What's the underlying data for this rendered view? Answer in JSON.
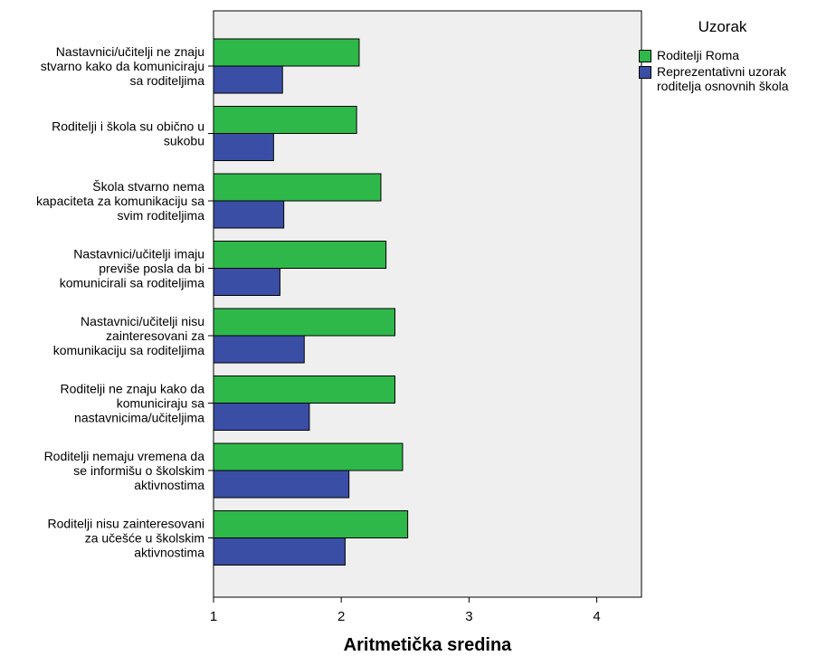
{
  "chart_data": {
    "type": "bar",
    "orientation": "horizontal",
    "title": "",
    "xlabel": "Aritmetička sredina",
    "ylabel": "",
    "xlim": [
      1,
      4.35
    ],
    "xticks": [
      "1",
      "2",
      "3",
      "4"
    ],
    "grid": false,
    "legend_title": "Uzorak",
    "legend_position": "top-right",
    "categories": [
      "Nastavnici/učitelji ne znaju stvarno kako da komuniciraju sa roditeljima",
      "Roditelji i škola su obično u sukobu",
      "Škola stvarno nema kapaciteta za komunikaciju sa svim roditeljima",
      "Nastavnici/učitelji imaju previše posla da bi komunicirali sa roditeljima",
      "Nastavnici/učitelji nisu zainteresovani za komunikaciju sa roditeljima",
      "Roditelji ne znaju kako da komuniciraju sa nastavnicima/učiteljima",
      "Roditelji nemaju vremena da se informišu o školskim aktivnostima",
      "Roditelji nisu zainteresovani za učešće u školskim aktivnostima"
    ],
    "category_lines": [
      [
        "Nastavnici/učitelji ne znaju",
        "stvarno kako da komuniciraju",
        "sa roditeljima"
      ],
      [
        "Roditelji i škola su obično u",
        "sukobu"
      ],
      [
        "Škola stvarno nema",
        "kapaciteta za komunikaciju sa",
        "svim roditeljima"
      ],
      [
        "Nastavnici/učitelji imaju",
        "previše posla da bi",
        "komunicirali sa roditeljima"
      ],
      [
        "Nastavnici/učitelji nisu",
        "zainteresovani za",
        "komunikaciju sa roditeljima"
      ],
      [
        "Roditelji ne znaju kako da",
        "komuniciraju sa",
        "nastavnicima/učiteljima"
      ],
      [
        "Roditelji nemaju vremena da",
        "se informišu o školskim",
        "aktivnostima"
      ],
      [
        "Roditelji nisu zainteresovani",
        "za učešće u školskim",
        "aktivnostima"
      ]
    ],
    "series": [
      {
        "name": "Reprezentativni  uzorak roditelja osnovnih škola",
        "legend_lines": [
          "Reprezentativni  uzorak",
          "roditelja osnovnih škola"
        ],
        "color": "#3b4ea6",
        "values": [
          1.54,
          1.47,
          1.55,
          1.52,
          1.71,
          1.75,
          2.06,
          2.03
        ]
      },
      {
        "name": "Roditelji Roma",
        "legend_lines": [
          "Roditelji Roma"
        ],
        "color": "#2fb84a",
        "values": [
          2.14,
          2.12,
          2.31,
          2.35,
          2.42,
          2.42,
          2.48,
          2.52
        ]
      }
    ],
    "legend_order": [
      1,
      0
    ],
    "background": "#efefef"
  }
}
